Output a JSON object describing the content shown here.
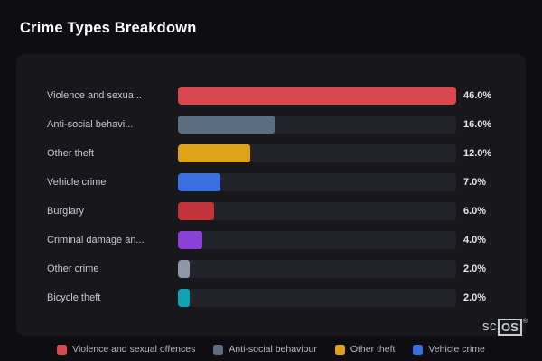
{
  "title": "Crime Types Breakdown",
  "chart_data": {
    "type": "bar",
    "orientation": "horizontal",
    "title": "Crime Types Breakdown",
    "categories": [
      "Violence and sexua...",
      "Anti-social behavi...",
      "Other theft",
      "Vehicle crime",
      "Burglary",
      "Criminal damage an...",
      "Other crime",
      "Bicycle theft"
    ],
    "values": [
      46.0,
      16.0,
      12.0,
      7.0,
      6.0,
      4.0,
      2.0,
      2.0
    ],
    "value_labels": [
      "46.0%",
      "16.0%",
      "12.0%",
      "7.0%",
      "6.0%",
      "4.0%",
      "2.0%",
      "2.0%"
    ],
    "bar_colors": [
      "#d9484e",
      "#5b6d83",
      "#dfa118",
      "#3a6fe0",
      "#c2343a",
      "#8b41d8",
      "#8d97a7",
      "#10a3b2"
    ],
    "max_value": 46.0,
    "xlim": [
      0,
      46
    ],
    "grid": false,
    "legend_position": "bottom",
    "legend": [
      {
        "label": "Violence and sexual offences",
        "color": "#d9484e"
      },
      {
        "label": "Anti-social behaviour",
        "color": "#5b6d83"
      },
      {
        "label": "Other theft",
        "color": "#dfa118"
      },
      {
        "label": "Vehicle crime",
        "color": "#3a6fe0"
      }
    ]
  },
  "branding": {
    "text_left": "sc",
    "text_right": "OS",
    "reg": "®"
  }
}
